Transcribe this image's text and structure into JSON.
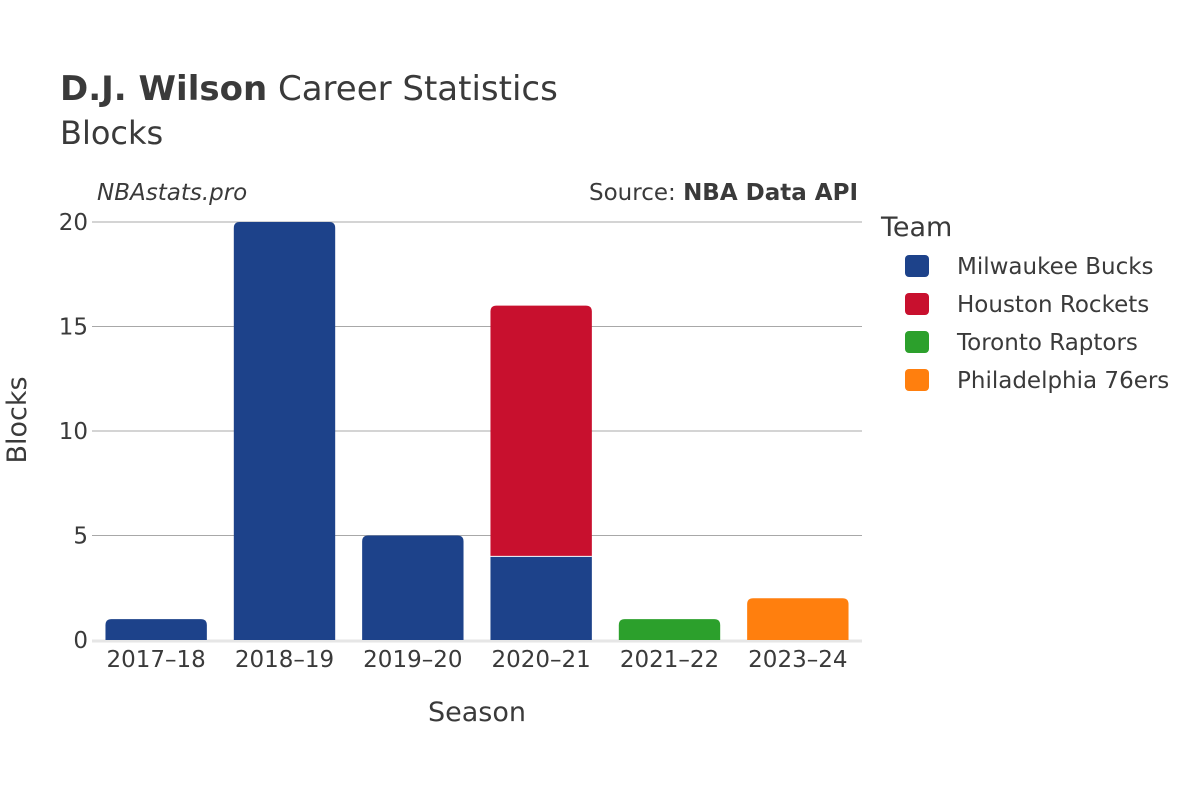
{
  "header": {
    "player_name": "D.J. Wilson",
    "title_suffix": " Career Statistics",
    "subtitle": "Blocks"
  },
  "watermark": "NBAstats.pro",
  "source": {
    "prefix": "Source: ",
    "name": "NBA Data API"
  },
  "legend": {
    "title": "Team",
    "items": [
      {
        "label": "Milwaukee Bucks",
        "color": "#1d428a"
      },
      {
        "label": "Houston Rockets",
        "color": "#c8102e"
      },
      {
        "label": "Toronto Raptors",
        "color": "#2ca02c"
      },
      {
        "label": "Philadelphia 76ers",
        "color": "#ff7f0e"
      }
    ]
  },
  "chart_data": {
    "type": "bar",
    "stacked": true,
    "xlabel": "Season",
    "ylabel": "Blocks",
    "ylim": [
      0,
      20
    ],
    "yticks": [
      0,
      5,
      10,
      15,
      20
    ],
    "grid": true,
    "legend_position": "right",
    "categories": [
      "2017–18",
      "2018–19",
      "2019–20",
      "2020–21",
      "2021–22",
      "2023–24"
    ],
    "series": [
      {
        "name": "Milwaukee Bucks",
        "color": "#1d428a",
        "values": [
          1,
          20,
          5,
          4,
          0,
          0
        ]
      },
      {
        "name": "Houston Rockets",
        "color": "#c8102e",
        "values": [
          0,
          0,
          0,
          12,
          0,
          0
        ]
      },
      {
        "name": "Toronto Raptors",
        "color": "#2ca02c",
        "values": [
          0,
          0,
          0,
          0,
          1,
          0
        ]
      },
      {
        "name": "Philadelphia 76ers",
        "color": "#ff7f0e",
        "values": [
          0,
          0,
          0,
          0,
          0,
          2
        ]
      }
    ]
  }
}
